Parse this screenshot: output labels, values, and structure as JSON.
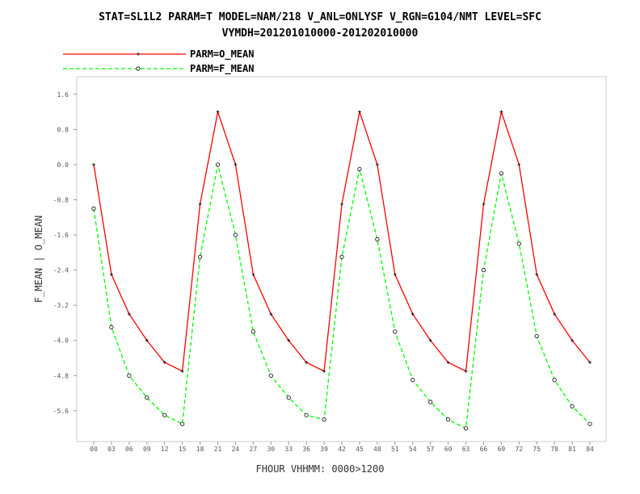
{
  "title_line1": "STAT=SL1L2 PARAM=T MODEL=NAM/218 V_ANL=ONLYSF V_RGN=G104/NMT LEVEL=SFC",
  "title_line2": "VYMDH=201201010000-201202010000",
  "chart_data": {
    "type": "line",
    "categories": [
      "00",
      "03",
      "06",
      "09",
      "12",
      "15",
      "18",
      "21",
      "24",
      "27",
      "30",
      "33",
      "36",
      "39",
      "42",
      "45",
      "48",
      "51",
      "54",
      "57",
      "60",
      "63",
      "66",
      "69",
      "72",
      "75",
      "78",
      "81",
      "84"
    ],
    "series": [
      {
        "name": "PARM=O_MEAN",
        "color": "#ff0000",
        "dash": "solid",
        "marker": "plus",
        "values": [
          0.0,
          -2.5,
          -3.4,
          -4.0,
          -4.5,
          -4.7,
          -0.9,
          1.2,
          0.0,
          -2.5,
          -3.4,
          -4.0,
          -4.5,
          -4.7,
          -0.9,
          1.2,
          0.0,
          -2.5,
          -3.4,
          -4.0,
          -4.5,
          -4.7,
          -0.9,
          1.2,
          0.0,
          -2.5,
          -3.4,
          -4.0,
          -4.5
        ]
      },
      {
        "name": "PARM=F_MEAN",
        "color": "#00ff00",
        "dash": "dashed",
        "marker": "circle",
        "values": [
          -1.0,
          -3.7,
          -4.8,
          -5.3,
          -5.7,
          -5.9,
          -2.1,
          0.0,
          -1.6,
          -3.8,
          -4.8,
          -5.3,
          -5.7,
          -5.8,
          -2.1,
          -0.1,
          -1.7,
          -3.8,
          -4.9,
          -5.4,
          -5.8,
          -6.0,
          -2.4,
          -0.2,
          -1.8,
          -3.9,
          -4.9,
          -5.5,
          -5.9
        ]
      }
    ],
    "y_ticks": [
      "1.6",
      "0.8",
      "0.0",
      "-0.8",
      "-1.6",
      "-2.4",
      "-3.2",
      "-4.0",
      "-4.8",
      "-5.6"
    ],
    "y_tick_values": [
      1.6,
      0.8,
      0.0,
      -0.8,
      -1.6,
      -2.4,
      -3.2,
      -4.0,
      -4.8,
      -5.6
    ],
    "ylim": [
      -6.3,
      2.0
    ],
    "xlabel": "FHOUR VHHMM: 0000>1200",
    "ylabel": "F_MEAN | O_MEAN",
    "grid": false,
    "legend_position": "top-left"
  }
}
